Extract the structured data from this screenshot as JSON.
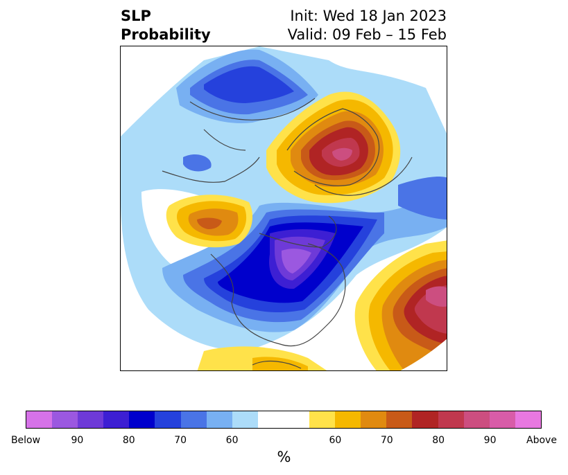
{
  "title": {
    "left_line1": "SLP",
    "left_line2": "Probability",
    "right_line1": "Init: Wed 18 Jan 2023",
    "right_line2": "Valid: 09 Feb – 15 Feb"
  },
  "map": {
    "projection": "north-polar-stereographic",
    "regions": [
      {
        "name": "north-america-below-normal-region",
        "category": "below",
        "peak": "90+"
      },
      {
        "name": "northern-europe-above-normal-region",
        "category": "above",
        "peak": "90"
      },
      {
        "name": "north-atlantic-above-normal-region",
        "category": "above",
        "peak": "90+"
      },
      {
        "name": "north-pacific-above-normal-region",
        "category": "above",
        "peak": "75"
      },
      {
        "name": "siberia-below-normal-region",
        "category": "below",
        "peak": "70"
      }
    ]
  },
  "colorbar": {
    "colors": [
      "#d672e8",
      "#9b58e0",
      "#6e3ad8",
      "#3d1fd3",
      "#0000cc",
      "#2541dc",
      "#4a74e6",
      "#78b0f2",
      "#acdcf9",
      "#ffffff",
      "#ffffff",
      "#ffe24a",
      "#f5b800",
      "#e08a10",
      "#c85a18",
      "#b02424",
      "#c0384e",
      "#cc4e80",
      "#d85ca8",
      "#e878e0"
    ],
    "tick_labels": [
      "Below",
      "90",
      "80",
      "70",
      "60",
      "60",
      "70",
      "80",
      "90",
      "Above"
    ],
    "unit_label": "%"
  }
}
